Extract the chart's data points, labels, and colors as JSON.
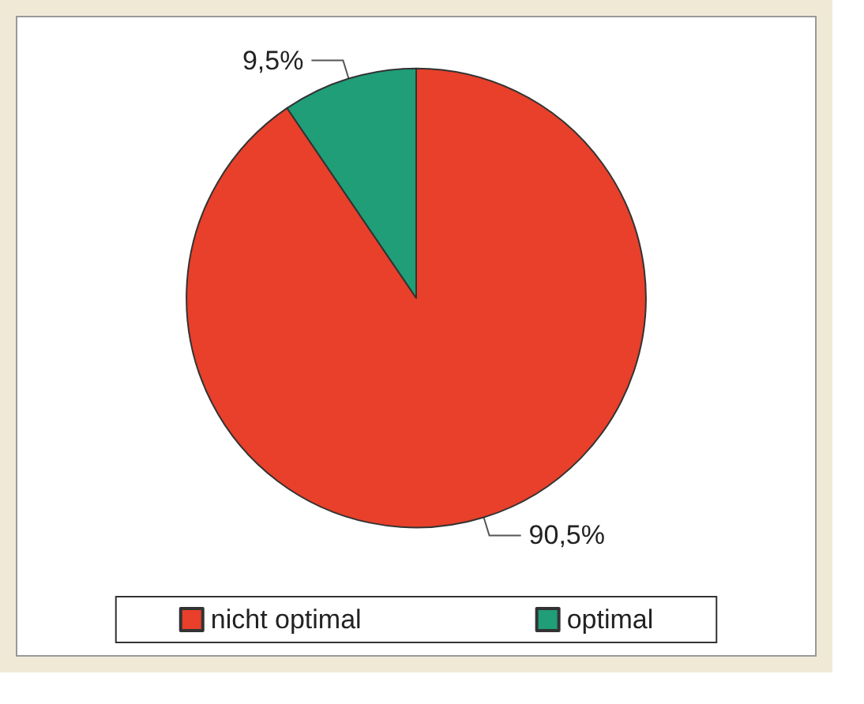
{
  "chart_data": {
    "type": "pie",
    "categories": [
      "nicht optimal",
      "optimal"
    ],
    "values": [
      90.5,
      9.5
    ],
    "colors": [
      "#e8402a",
      "#1f9e78"
    ],
    "value_labels": [
      "90,5%",
      "9,5%"
    ],
    "legend": "bottom"
  }
}
